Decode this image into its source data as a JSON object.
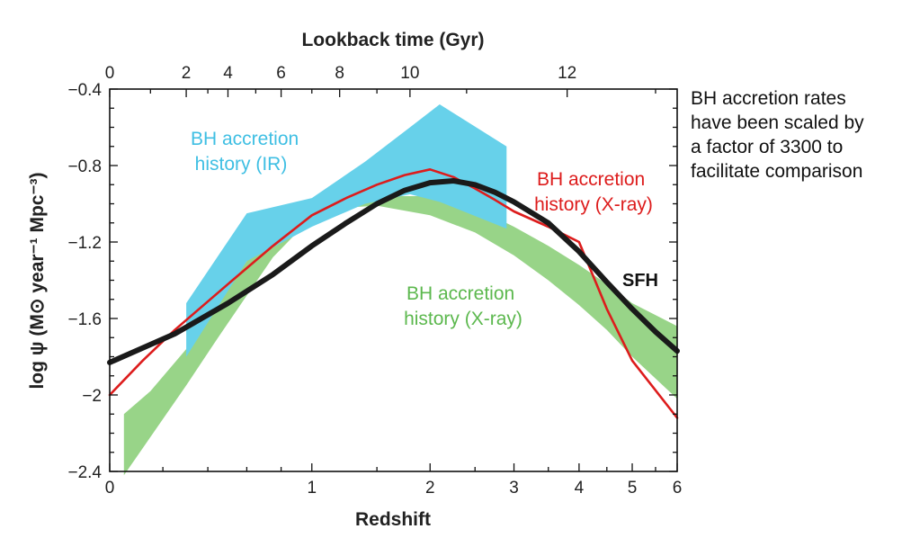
{
  "chart_data": {
    "type": "area",
    "xlabel": "Redshift",
    "x2label": "Lookback time (Gyr)",
    "ylabel": "log ψ (M⊙ year⁻¹ Mpc⁻³)",
    "ylim": [
      -2.4,
      -0.4
    ],
    "y_ticks": [
      -0.4,
      -0.8,
      -1.2,
      -1.6,
      -2,
      -2.4
    ],
    "y_tick_labels": [
      "−0.4",
      "−0.8",
      "−1.2",
      "−1.6",
      "−2",
      "−2.4"
    ],
    "x_scale": "log(1+z)",
    "xlim": [
      0,
      6
    ],
    "x_ticks": [
      0,
      1,
      2,
      3,
      4,
      5,
      6
    ],
    "x_tick_labels": [
      "0",
      "1",
      "2",
      "3",
      "4",
      "5",
      "6"
    ],
    "x2_ticks_redshift": [
      0,
      0.3,
      0.5,
      0.8,
      1.2,
      1.8,
      3.8
    ],
    "x2_tick_labels": [
      "0",
      "2",
      "4",
      "6",
      "8",
      "10",
      "12"
    ],
    "grid": false,
    "series": [
      {
        "name": "SFH",
        "kind": "line",
        "color": "#1a1a1a",
        "x": [
          0,
          0.25,
          0.5,
          0.75,
          1,
          1.25,
          1.5,
          1.75,
          2,
          2.25,
          2.5,
          2.75,
          3,
          3.5,
          4,
          4.5,
          5,
          5.5,
          6
        ],
        "y": [
          -1.83,
          -1.68,
          -1.52,
          -1.37,
          -1.22,
          -1.1,
          -1.0,
          -0.93,
          -0.89,
          -0.88,
          -0.9,
          -0.94,
          -0.99,
          -1.1,
          -1.25,
          -1.41,
          -1.55,
          -1.67,
          -1.77
        ]
      },
      {
        "name": "BH accretion history (X-ray)",
        "kind": "line",
        "color": "#dd1c1c",
        "x": [
          0,
          0.12,
          0.25,
          0.5,
          0.75,
          1,
          1.25,
          1.5,
          1.75,
          2,
          2.25,
          2.5,
          2.75,
          3,
          3.5,
          4,
          4.5,
          5,
          6
        ],
        "y": [
          -2.0,
          -1.82,
          -1.66,
          -1.42,
          -1.22,
          -1.06,
          -0.97,
          -0.9,
          -0.85,
          -0.82,
          -0.86,
          -0.92,
          -0.98,
          -1.04,
          -1.12,
          -1.2,
          -1.55,
          -1.82,
          -2.12
        ]
      },
      {
        "name": "BH accretion history (X-ray)",
        "kind": "band",
        "color": "#98d488",
        "x": [
          0.05,
          0.15,
          0.3,
          0.45,
          0.6,
          0.75,
          1,
          1.25,
          1.5,
          2,
          2.5,
          3,
          3.5,
          4,
          4.5,
          5,
          6
        ],
        "y_upper": [
          -2.1,
          -1.98,
          -1.76,
          -1.52,
          -1.3,
          -1.08,
          -1.0,
          -0.98,
          -0.96,
          -0.96,
          -1.02,
          -1.12,
          -1.22,
          -1.32,
          -1.42,
          -1.52,
          -1.64
        ],
        "y_lower": [
          -2.42,
          -2.22,
          -1.95,
          -1.7,
          -1.48,
          -1.28,
          -1.07,
          -1.02,
          -1.01,
          -1.06,
          -1.15,
          -1.27,
          -1.4,
          -1.53,
          -1.66,
          -1.8,
          -2.02
        ]
      },
      {
        "name": "BH accretion history (IR)",
        "kind": "band",
        "color": "#67d1ea",
        "x": [
          0.3,
          0.6,
          1,
          1.4,
          1.8,
          2.1,
          2.9
        ],
        "y_upper": [
          -1.52,
          -1.05,
          -0.97,
          -0.78,
          -0.6,
          -0.48,
          -0.7
        ],
        "y_lower": [
          -1.8,
          -1.3,
          -1.12,
          -1.0,
          -0.95,
          -0.99,
          -1.13
        ]
      }
    ],
    "annotations": [
      {
        "text_lines": [
          "BH accretion",
          "history (IR)"
        ],
        "color": "#3fbfe3"
      },
      {
        "text_lines": [
          "BH accretion",
          "history (X-ray)"
        ],
        "color": "#dd1c1c"
      },
      {
        "text_lines": [
          "BH accretion",
          "history (X-ray)"
        ],
        "color": "#5cb84e"
      },
      {
        "text_lines": [
          "SFH"
        ],
        "color": "#111111"
      }
    ]
  },
  "note": {
    "lines": [
      "BH accretion rates",
      "have been scaled by",
      "a factor of 3300 to",
      "facilitate comparison"
    ]
  }
}
